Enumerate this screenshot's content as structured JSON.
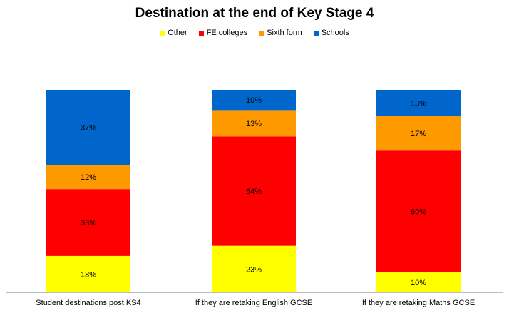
{
  "chart_data": {
    "type": "bar",
    "stacked": true,
    "percent_stacked": true,
    "title": "Destination at the end of Key Stage 4",
    "xlabel": "",
    "ylabel": "",
    "legend_position": "top",
    "grid": false,
    "ylim": [
      0,
      100
    ],
    "categories": [
      "Student destinations post KS4",
      "If they are retaking English GCSE",
      "If they are retaking Maths GCSE"
    ],
    "series": [
      {
        "name": "Other",
        "color": "#FFFF00",
        "values": [
          18,
          23,
          10
        ],
        "labels": [
          "18%",
          "23%",
          "10%"
        ]
      },
      {
        "name": "FE colleges",
        "color": "#FF0000",
        "values": [
          33,
          54,
          60
        ],
        "labels": [
          "33%",
          "54%",
          "60%"
        ]
      },
      {
        "name": "Sixth form",
        "color": "#FF9900",
        "values": [
          12,
          13,
          17
        ],
        "labels": [
          "12%",
          "13%",
          "17%"
        ]
      },
      {
        "name": "Schools",
        "color": "#0066CC",
        "values": [
          37,
          10,
          13
        ],
        "labels": [
          "37%",
          "10%",
          "13%"
        ]
      }
    ]
  }
}
